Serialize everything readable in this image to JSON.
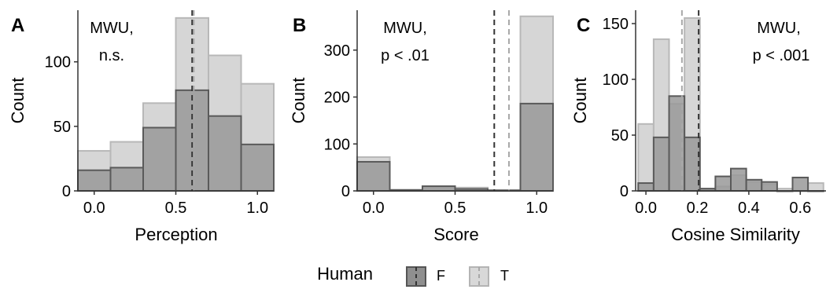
{
  "chart_data": [
    {
      "type": "bar",
      "panel_letter": "A",
      "xlabel": "Perception",
      "ylabel": "Count",
      "annotation": [
        "MWU,",
        "n.s."
      ],
      "xlim": [
        -0.1,
        1.1
      ],
      "ylim": [
        0,
        140
      ],
      "xticks": [
        0.0,
        0.5,
        1.0
      ],
      "xtick_labels": [
        "0.0",
        "0.5",
        "1.0"
      ],
      "yticks": [
        0,
        50,
        100
      ],
      "ytick_labels": [
        "0",
        "50",
        "100"
      ],
      "bin_edges": [
        -0.1,
        0.1,
        0.3,
        0.5,
        0.7,
        0.9,
        1.1
      ],
      "series": [
        {
          "name": "T",
          "values": [
            31,
            38,
            68,
            134,
            105,
            83
          ]
        },
        {
          "name": "F",
          "values": [
            16,
            18,
            49,
            78,
            58,
            36
          ]
        }
      ],
      "vlines": [
        {
          "series": "F",
          "x": 0.6
        },
        {
          "series": "T",
          "x": 0.61
        }
      ]
    },
    {
      "type": "bar",
      "panel_letter": "B",
      "xlabel": "Score",
      "ylabel": "Count",
      "annotation": [
        "MWU,",
        "p < .01"
      ],
      "xlim": [
        -0.1,
        1.1
      ],
      "ylim": [
        0,
        385
      ],
      "xticks": [
        0.0,
        0.5,
        1.0
      ],
      "xtick_labels": [
        "0.0",
        "0.5",
        "1.0"
      ],
      "yticks": [
        0,
        100,
        200,
        300
      ],
      "ytick_labels": [
        "0",
        "100",
        "200",
        "300"
      ],
      "bin_edges": [
        -0.1,
        0.1,
        0.3,
        0.5,
        0.7,
        0.9,
        1.1
      ],
      "series": [
        {
          "name": "T",
          "values": [
            72,
            2,
            8,
            7,
            2,
            372
          ]
        },
        {
          "name": "F",
          "values": [
            62,
            2,
            10,
            4,
            1,
            186
          ]
        }
      ],
      "vlines": [
        {
          "series": "F",
          "x": 0.74
        },
        {
          "series": "T",
          "x": 0.83
        }
      ]
    },
    {
      "type": "bar",
      "panel_letter": "C",
      "xlabel": "Cosine Similarity",
      "ylabel": "Count",
      "annotation": [
        "MWU,",
        "p < .001"
      ],
      "xlim": [
        -0.04,
        0.7
      ],
      "ylim": [
        0,
        162
      ],
      "xticks": [
        0.0,
        0.2,
        0.4,
        0.6
      ],
      "xtick_labels": [
        "0.0",
        "0.2",
        "0.4",
        "0.6"
      ],
      "yticks": [
        0,
        50,
        100,
        150
      ],
      "ytick_labels": [
        "0",
        "50",
        "100",
        "150"
      ],
      "bin_edges": [
        -0.03,
        0.03,
        0.09,
        0.15,
        0.21,
        0.27,
        0.33,
        0.39,
        0.45,
        0.51,
        0.57,
        0.63,
        0.69
      ],
      "series": [
        {
          "name": "T",
          "values": [
            60,
            136,
            78,
            155,
            2,
            4,
            14,
            8,
            6,
            2,
            0,
            7
          ]
        },
        {
          "name": "F",
          "values": [
            7,
            48,
            85,
            48,
            2,
            13,
            20,
            10,
            8,
            0,
            12,
            0
          ]
        }
      ],
      "vlines": [
        {
          "series": "F",
          "x": 0.205
        },
        {
          "series": "T",
          "x": 0.14
        }
      ]
    }
  ],
  "legend": {
    "title": "Human",
    "placement": "bottom",
    "items": [
      {
        "label": "F",
        "fill": "#8f8f8f",
        "stroke": "#555555",
        "line_color": "#333333"
      },
      {
        "label": "T",
        "fill": "#d8d8d8",
        "stroke": "#b4b4b4",
        "line_color": "#a8a8a8"
      }
    ]
  },
  "colors": {
    "F_fill": "#999999",
    "F_stroke": "#5a5a5a",
    "T_fill": "#d6d6d6",
    "T_stroke": "#b8b8b8",
    "F_line": "#333333",
    "T_line": "#a8a8a8",
    "axis": "#333333"
  }
}
